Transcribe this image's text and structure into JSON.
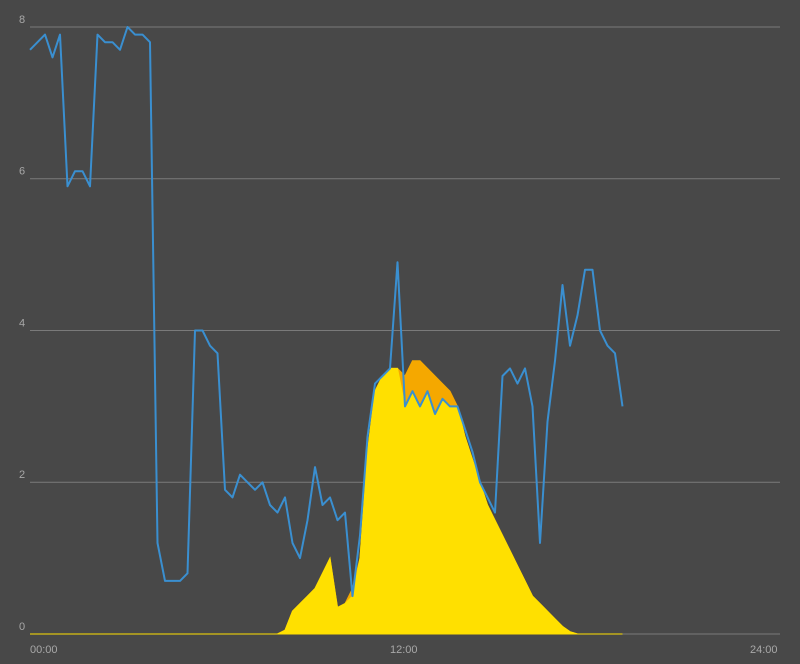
{
  "chart_data": {
    "type": "line",
    "x": [
      0,
      0.25,
      0.5,
      0.75,
      1,
      1.25,
      1.5,
      1.75,
      2,
      2.25,
      2.5,
      2.75,
      3,
      3.25,
      3.5,
      3.75,
      4,
      4.25,
      4.5,
      4.75,
      5,
      5.25,
      5.5,
      5.75,
      6,
      6.25,
      6.5,
      6.75,
      7,
      7.25,
      7.5,
      7.75,
      8,
      8.25,
      8.5,
      8.75,
      9,
      9.25,
      9.5,
      9.75,
      10,
      10.25,
      10.5,
      10.75,
      11,
      11.25,
      11.5,
      11.75,
      12,
      12.25,
      12.5,
      12.75,
      13,
      13.25,
      13.5,
      13.75,
      14,
      14.25,
      14.5,
      14.75,
      15,
      15.25,
      15.5,
      15.75,
      16,
      16.25,
      16.5,
      16.75,
      17,
      17.25,
      17.5,
      17.75,
      18,
      18.25,
      18.5,
      18.75,
      19,
      19.25,
      19.5,
      19.75
    ],
    "series": [
      {
        "kind": "area",
        "color": "#f5a800",
        "values": [
          0,
          0,
          0,
          0,
          0,
          0,
          0,
          0,
          0,
          0,
          0,
          0,
          0,
          0,
          0,
          0,
          0,
          0,
          0,
          0,
          0,
          0,
          0,
          0,
          0,
          0,
          0,
          0,
          0,
          0,
          0,
          0,
          0,
          0,
          0.05,
          0.3,
          0.4,
          0.5,
          0.6,
          0.8,
          1.0,
          0.35,
          0.4,
          0.6,
          1.0,
          2.4,
          3.2,
          3.4,
          3.5,
          3.5,
          3.4,
          3.6,
          3.6,
          3.5,
          3.4,
          3.3,
          3.2,
          3.0,
          2.6,
          2.3,
          2.0,
          1.7,
          1.5,
          1.3,
          1.1,
          0.9,
          0.7,
          0.5,
          0.4,
          0.3,
          0.2,
          0.1,
          0.03,
          0,
          0,
          0,
          0,
          0,
          0,
          0
        ]
      },
      {
        "kind": "area",
        "color": "#ffe000",
        "values": [
          0,
          0,
          0,
          0,
          0,
          0,
          0,
          0,
          0,
          0,
          0,
          0,
          0,
          0,
          0,
          0,
          0,
          0,
          0,
          0,
          0,
          0,
          0,
          0,
          0,
          0,
          0,
          0,
          0,
          0,
          0,
          0,
          0,
          0,
          0.05,
          0.3,
          0.4,
          0.5,
          0.6,
          0.8,
          1.0,
          0.35,
          0.4,
          0.5,
          1.0,
          2.4,
          3.2,
          3.4,
          3.5,
          3.5,
          3.0,
          3.2,
          3.0,
          3.2,
          2.9,
          3.1,
          3.0,
          3.0,
          2.6,
          2.3,
          2.0,
          1.7,
          1.5,
          1.3,
          1.1,
          0.9,
          0.7,
          0.5,
          0.4,
          0.3,
          0.2,
          0.1,
          0.03,
          0,
          0,
          0,
          0,
          0,
          0,
          0
        ]
      },
      {
        "kind": "line",
        "color": "#3a8fd0",
        "values": [
          7.7,
          7.8,
          7.9,
          7.6,
          7.9,
          5.9,
          6.1,
          6.1,
          5.9,
          7.9,
          7.8,
          7.8,
          7.7,
          8.0,
          7.9,
          7.9,
          7.8,
          1.2,
          0.7,
          0.7,
          0.7,
          0.8,
          4.0,
          4.0,
          3.8,
          3.7,
          1.9,
          1.8,
          2.1,
          2.0,
          1.9,
          2.0,
          1.7,
          1.6,
          1.8,
          1.2,
          1.0,
          1.5,
          2.2,
          1.7,
          1.8,
          1.5,
          1.6,
          0.5,
          1.3,
          2.6,
          3.3,
          3.4,
          3.5,
          4.9,
          3.0,
          3.2,
          3.0,
          3.2,
          2.9,
          3.1,
          3.0,
          3.0,
          2.7,
          2.4,
          2.0,
          1.8,
          1.6,
          3.4,
          3.5,
          3.3,
          3.5,
          3.0,
          1.2,
          2.8,
          3.6,
          4.6,
          3.8,
          4.2,
          4.8,
          4.8,
          4.0,
          3.8,
          3.7,
          3.0
        ]
      }
    ],
    "xlim": [
      0,
      24
    ],
    "xticks": [
      {
        "value": 0,
        "label": "00:00"
      },
      {
        "value": 12,
        "label": "12:00"
      },
      {
        "value": 24,
        "label": "24:00"
      }
    ],
    "ylim": [
      0,
      8
    ],
    "yticks": [
      0,
      2,
      4,
      6,
      8
    ],
    "grid": true,
    "grid_color": "#7a7a7a"
  }
}
